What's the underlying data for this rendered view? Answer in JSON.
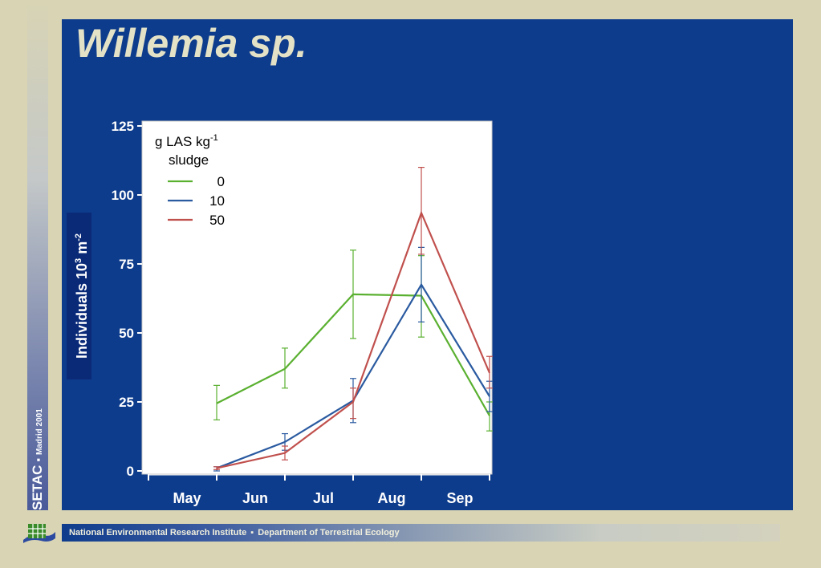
{
  "slide": {
    "title": "Willemia sp.",
    "sidebar": {
      "org": "SETAC",
      "separator": "▪",
      "event": "Madrid 2001"
    },
    "footer": {
      "institute": "National Environmental Research Institute",
      "separator": "▪",
      "department": "Department of Terrestrial Ecology"
    },
    "colors": {
      "panel": "#0e3c8c",
      "background": "#d8d4b4",
      "title": "#e4e2c6"
    },
    "logo_icon": "grid-map-logo-icon"
  },
  "chart_data": {
    "type": "line",
    "ylabel_main": "Individuals 10",
    "ylabel_sup1": "3",
    "ylabel_mid": " m",
    "ylabel_sup2": "-2",
    "ylim": [
      0,
      125
    ],
    "yticks": [
      0,
      25,
      50,
      75,
      100,
      125
    ],
    "categories": [
      "May",
      "Jun",
      "Jul",
      "Aug",
      "Sep"
    ],
    "grid": false,
    "legend": {
      "title_line1": "g LAS kg",
      "title_sup": "-1",
      "title_line2": "sludge",
      "placement": "top-left"
    },
    "series": [
      {
        "name": "0",
        "color": "#5ab030",
        "x": [
          1,
          2,
          3,
          4,
          5
        ],
        "values": [
          24.5,
          37,
          64,
          63.5,
          20
        ],
        "err_low": [
          18.5,
          30,
          48,
          48.5,
          14.5
        ],
        "err_high": [
          31,
          44.5,
          80,
          78,
          25
        ]
      },
      {
        "name": "10",
        "color": "#2a5aa0",
        "x": [
          1,
          2,
          3,
          4,
          5
        ],
        "values": [
          1,
          10.5,
          25.5,
          67.5,
          27
        ],
        "err_low": [
          0,
          7.5,
          17.5,
          54,
          21.5
        ],
        "err_high": [
          1.5,
          13.5,
          33.5,
          81,
          32.5
        ]
      },
      {
        "name": "50",
        "color": "#c0504d",
        "x": [
          1,
          2,
          3,
          4,
          5
        ],
        "values": [
          1,
          6.5,
          25,
          93.5,
          35.5
        ],
        "err_low": [
          0.5,
          4,
          19,
          78.5,
          30
        ],
        "err_high": [
          1.5,
          9,
          30,
          110,
          41.5
        ]
      }
    ]
  }
}
